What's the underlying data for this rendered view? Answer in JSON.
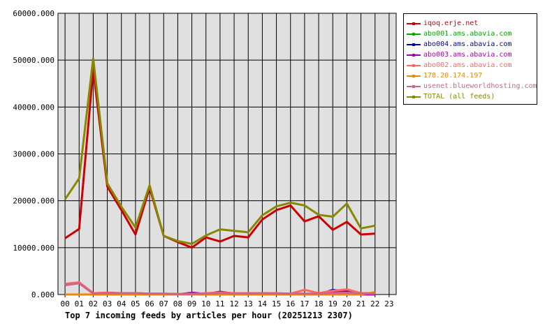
{
  "chart_data": {
    "type": "line",
    "title": "Top 7 incoming feeds by articles per hour (20251213 2307)",
    "xlabel": "",
    "ylabel": "",
    "categories": [
      "00",
      "01",
      "02",
      "03",
      "04",
      "05",
      "06",
      "07",
      "08",
      "09",
      "10",
      "11",
      "12",
      "13",
      "14",
      "15",
      "16",
      "17",
      "18",
      "19",
      "20",
      "21",
      "22",
      "23"
    ],
    "ylim": [
      0,
      60000
    ],
    "yticks": [
      "0.000",
      "10000.000",
      "20000.000",
      "30000.000",
      "40000.000",
      "50000.000",
      "60000.000"
    ],
    "ytick_values": [
      0,
      10000,
      20000,
      30000,
      40000,
      50000,
      60000
    ],
    "grid": true,
    "legend_position": "right",
    "series": [
      {
        "name": "iqoq.erje.net",
        "color": "#cc0000",
        "values": [
          12000,
          14000,
          48000,
          23000,
          18000,
          12800,
          22800,
          12500,
          11200,
          10000,
          12200,
          11300,
          12500,
          12200,
          16000,
          18000,
          19000,
          15600,
          16700,
          13800,
          15500,
          12800,
          13000,
          null
        ]
      },
      {
        "name": "abo001.ams.abavia.com",
        "color": "#00aa00",
        "values": [
          0,
          0,
          0,
          0,
          0,
          0,
          0,
          0,
          0,
          0,
          0,
          0,
          0,
          0,
          0,
          0,
          0,
          0,
          0,
          0,
          0,
          0,
          0,
          null
        ]
      },
      {
        "name": "abo004.ams.abavia.com",
        "color": "#0000aa",
        "values": [
          0,
          0,
          0,
          0,
          0,
          0,
          0,
          0,
          0,
          0,
          0,
          0,
          0,
          0,
          0,
          0,
          0,
          0,
          0,
          1000,
          600,
          0,
          0,
          null
        ]
      },
      {
        "name": "abo003.ams.abavia.com",
        "color": "#aa00aa",
        "values": [
          0,
          0,
          0,
          0,
          0,
          0,
          0,
          0,
          0,
          400,
          100,
          600,
          200,
          300,
          300,
          0,
          0,
          0,
          0,
          500,
          1000,
          0,
          0,
          null
        ]
      },
      {
        "name": "abo002.ams.abavia.com",
        "color": "#ff6666",
        "values": [
          2300,
          2600,
          300,
          400,
          300,
          300,
          200,
          200,
          100,
          100,
          300,
          400,
          300,
          300,
          300,
          300,
          200,
          1000,
          300,
          800,
          1100,
          300,
          300,
          null
        ]
      },
      {
        "name": "178.20.174.197",
        "color": "#ee8800",
        "values": [
          0,
          0,
          0,
          0,
          0,
          0,
          0,
          0,
          0,
          0,
          0,
          0,
          0,
          0,
          0,
          0,
          0,
          0,
          0,
          0,
          0,
          0,
          500,
          null
        ]
      },
      {
        "name": "usenet.blueworldhosting.com",
        "color": "#cc6688",
        "values": [
          2000,
          2400,
          200,
          300,
          300,
          300,
          200,
          200,
          100,
          100,
          200,
          300,
          200,
          200,
          300,
          200,
          200,
          200,
          200,
          300,
          400,
          200,
          200,
          null
        ]
      },
      {
        "name": "TOTAL (all feeds)",
        "color": "#888800",
        "values": [
          20300,
          24800,
          50400,
          23700,
          18700,
          14300,
          23300,
          12500,
          11400,
          10800,
          12600,
          13900,
          13600,
          13300,
          16900,
          18800,
          19600,
          19000,
          17000,
          16600,
          19400,
          14100,
          14700,
          null
        ]
      }
    ]
  }
}
